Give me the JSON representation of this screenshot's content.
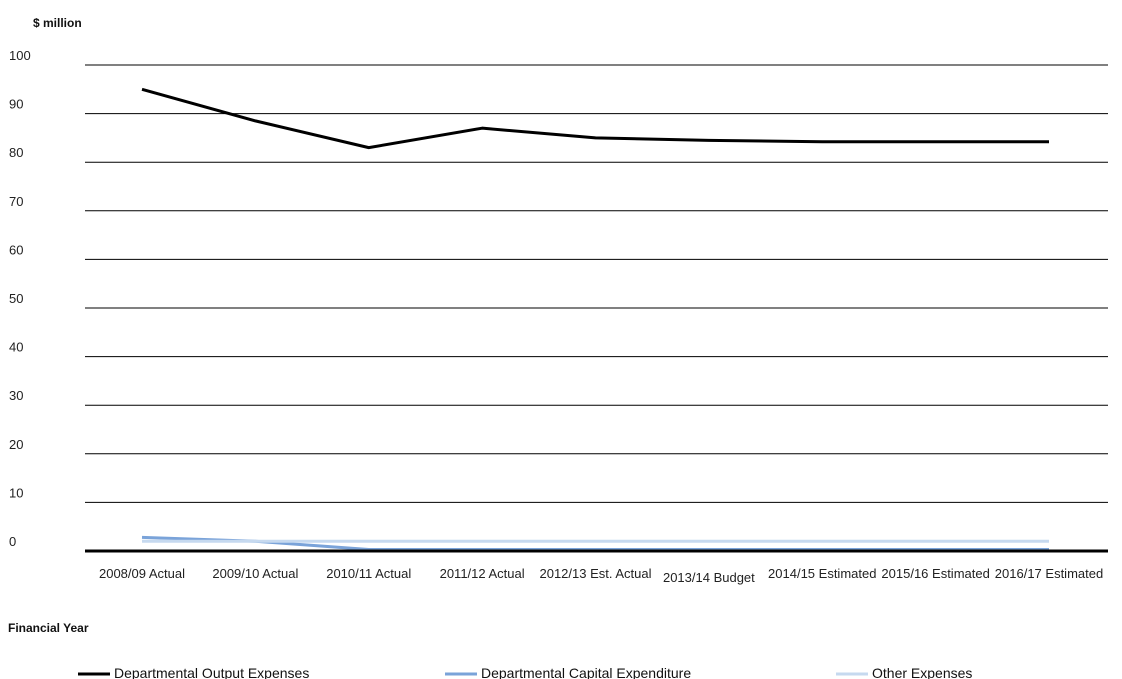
{
  "chart_data": {
    "type": "line",
    "ylabel": "$ million",
    "xlabel": "Financial Year",
    "ylim": [
      0,
      100
    ],
    "yticks": [
      0,
      10,
      20,
      30,
      40,
      50,
      60,
      70,
      80,
      90,
      100
    ],
    "grid": true,
    "legend": "bottom",
    "categories": [
      "2008/09 Actual",
      "2009/10 Actual",
      "2010/11 Actual",
      "2011/12 Actual",
      "2012/13 Est. Actual",
      "2013/14 Budget",
      "2014/15 Estimated",
      "2015/16 Estimated",
      "2016/17 Estimated"
    ],
    "series": [
      {
        "name": "Departmental Output Expenses",
        "color": "#000000",
        "values": [
          95,
          88.5,
          83,
          87,
          85,
          84.5,
          84.2,
          84.2,
          84.2
        ]
      },
      {
        "name": "Departmental Capital Expenditure",
        "color": "#7aa3d9",
        "values": [
          2.8,
          2.0,
          0.3,
          0.3,
          0.3,
          0.3,
          0.3,
          0.3,
          0.3
        ]
      },
      {
        "name": "Other Expenses",
        "color": "#c6d9ef",
        "values": [
          2.0,
          2.0,
          2.0,
          2.0,
          2.0,
          2.0,
          2.0,
          2.0,
          2.0
        ]
      }
    ]
  }
}
